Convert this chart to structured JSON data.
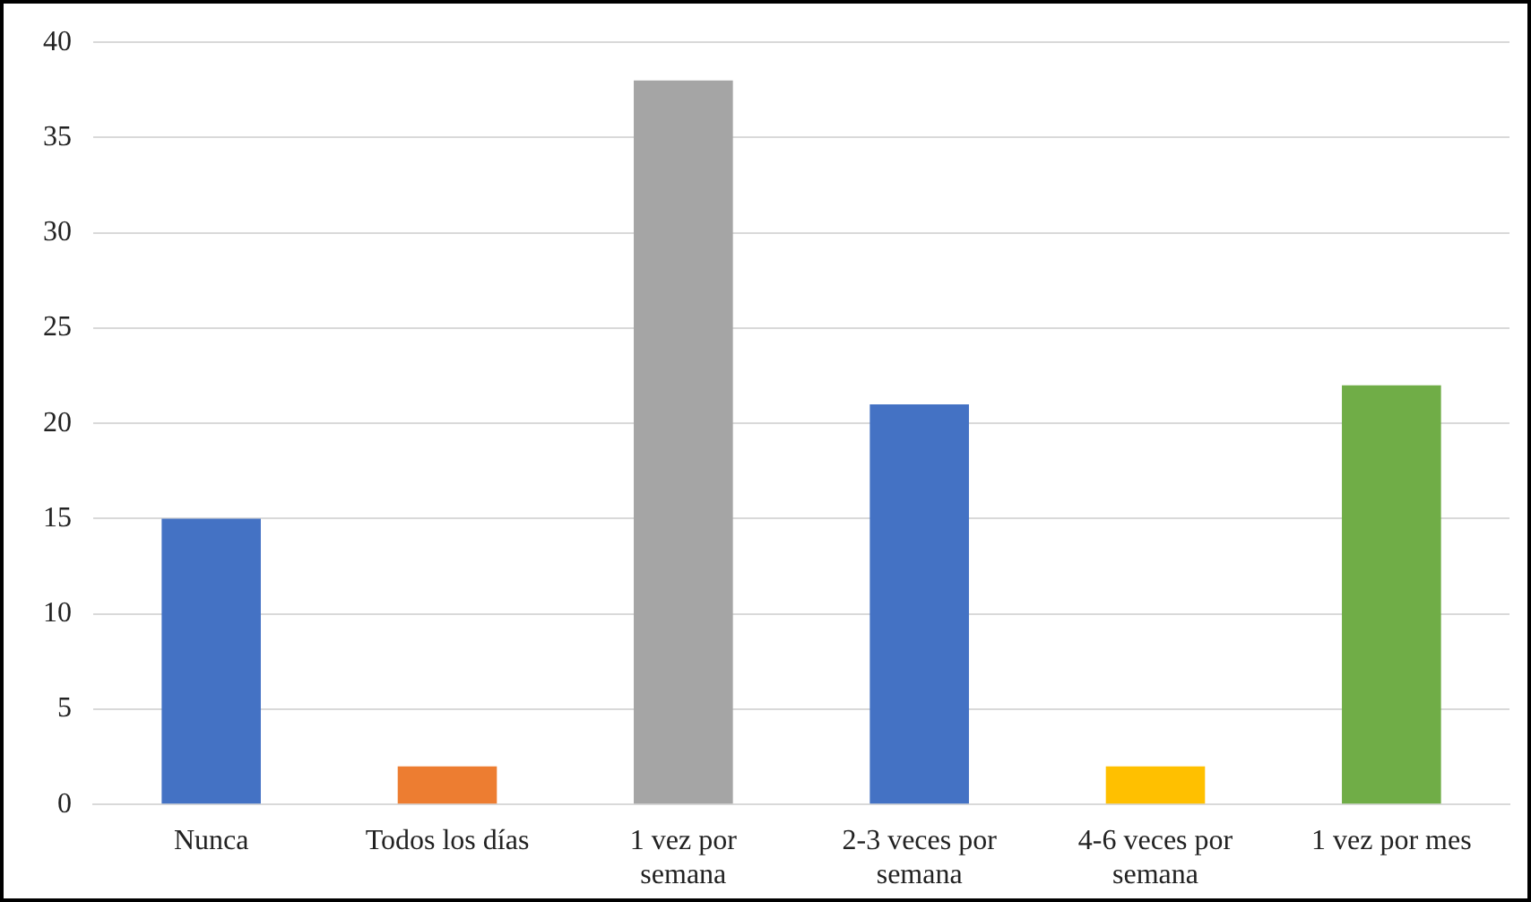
{
  "chart_data": {
    "type": "bar",
    "categories": [
      "Nunca",
      "Todos los días",
      "1 vez por semana",
      "2-3 veces por semana",
      "4-6 veces por semana",
      "1 vez por mes"
    ],
    "values": [
      15,
      2,
      38,
      21,
      2,
      22
    ],
    "colors": [
      "#4472c4",
      "#ed7d31",
      "#a5a5a5",
      "#4472c4",
      "#ffc000",
      "#70ad47"
    ],
    "ylim": [
      0,
      40
    ],
    "yticks": [
      0,
      5,
      10,
      15,
      20,
      25,
      30,
      35,
      40
    ],
    "grid": "y",
    "legend": false
  }
}
